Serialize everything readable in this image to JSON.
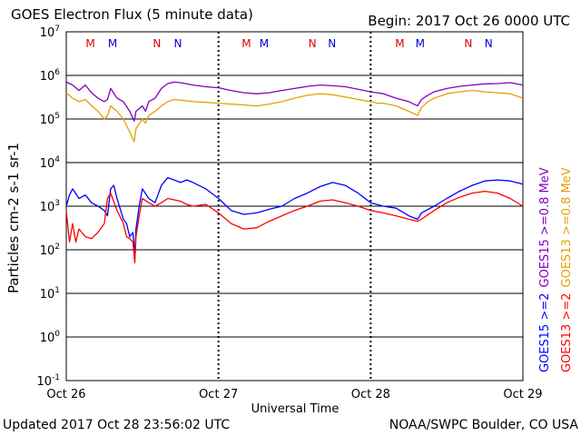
{
  "header": {
    "title": "GOES Electron Flux (5 minute data)",
    "begin": "Begin: 2017 Oct 26 0000 UTC"
  },
  "footer": {
    "updated": "Updated 2017 Oct 28 23:56:02 UTC",
    "credit": "NOAA/SWPC Boulder, CO USA"
  },
  "chart_data": {
    "type": "line",
    "title": "GOES Electron Flux (5 minute data)",
    "xlabel": "Universal Time",
    "ylabel": "Particles cm-2 s-1 sr-1",
    "yscale": "log",
    "ylim": [
      0.1,
      10000000
    ],
    "xlim": [
      0,
      72
    ],
    "x_unit": "hours since 2017 Oct 26 0000 UTC",
    "x_ticks": [
      {
        "x": 0,
        "label": "Oct 26"
      },
      {
        "x": 24,
        "label": "Oct 27"
      },
      {
        "x": 48,
        "label": "Oct 28"
      },
      {
        "x": 72,
        "label": "Oct 29"
      }
    ],
    "y_ticks": [
      {
        "value": 10000000,
        "base": "10",
        "exp": "7"
      },
      {
        "value": 1000000,
        "base": "10",
        "exp": "6"
      },
      {
        "value": 100000,
        "base": "10",
        "exp": "5"
      },
      {
        "value": 10000,
        "base": "10",
        "exp": "4"
      },
      {
        "value": 1000,
        "base": "10",
        "exp": "3"
      },
      {
        "value": 100,
        "base": "10",
        "exp": "2"
      },
      {
        "value": 10,
        "base": "10",
        "exp": "1"
      },
      {
        "value": 1,
        "base": "10",
        "exp": "0"
      },
      {
        "value": 0.1,
        "base": "10",
        "exp": "-1"
      }
    ],
    "threshold": {
      "value": 1000,
      "style": "dashed"
    },
    "grid": true,
    "legend": [
      {
        "text": "GOES15 >=2",
        "color": "#0000ff"
      },
      {
        "text": "GOES15 >=0.8 MeV",
        "color": "#8000c0"
      },
      {
        "text": "GOES13 >=2",
        "color": "#ff0000"
      },
      {
        "text": "GOES13 >=0.8 MeV",
        "color": "#e6a000"
      }
    ],
    "markers": [
      {
        "x": 3.8,
        "label": "M",
        "color": "#dd0000"
      },
      {
        "x": 7.3,
        "label": "M",
        "color": "#0000cc"
      },
      {
        "x": 14.3,
        "label": "N",
        "color": "#dd0000"
      },
      {
        "x": 17.6,
        "label": "N",
        "color": "#0000cc"
      },
      {
        "x": 28.4,
        "label": "M",
        "color": "#dd0000"
      },
      {
        "x": 31.2,
        "label": "M",
        "color": "#0000cc"
      },
      {
        "x": 38.8,
        "label": "N",
        "color": "#dd0000"
      },
      {
        "x": 41.9,
        "label": "N",
        "color": "#0000cc"
      },
      {
        "x": 52.6,
        "label": "M",
        "color": "#dd0000"
      },
      {
        "x": 55.8,
        "label": "M",
        "color": "#0000cc"
      },
      {
        "x": 63.4,
        "label": "N",
        "color": "#dd0000"
      },
      {
        "x": 66.6,
        "label": "N",
        "color": "#0000cc"
      }
    ],
    "series": [
      {
        "name": "GOES15 >=0.8 MeV",
        "color": "#8000c0",
        "x": [
          0,
          1,
          2,
          3,
          4,
          5,
          6,
          6.5,
          7,
          8,
          9,
          10,
          10.7,
          11,
          12,
          12.5,
          13,
          14,
          15,
          16,
          17,
          18,
          20,
          22,
          24,
          26,
          28,
          30,
          32,
          34,
          36,
          38,
          40,
          42,
          44,
          46,
          48,
          49,
          50,
          52,
          54,
          55.4,
          56,
          57,
          58,
          60,
          62,
          64,
          66,
          68,
          70,
          72
        ],
        "values": [
          700000,
          600000,
          450000,
          600000,
          400000,
          300000,
          250000,
          280000,
          500000,
          300000,
          250000,
          150000,
          90000,
          150000,
          200000,
          150000,
          250000,
          300000,
          500000,
          650000,
          700000,
          680000,
          600000,
          550000,
          520000,
          450000,
          400000,
          380000,
          400000,
          450000,
          500000,
          560000,
          600000,
          580000,
          550000,
          480000,
          420000,
          400000,
          380000,
          300000,
          250000,
          200000,
          280000,
          350000,
          420000,
          500000,
          560000,
          600000,
          640000,
          650000,
          680000,
          600000
        ]
      },
      {
        "name": "GOES13 >=0.8 MeV",
        "color": "#e6a000",
        "x": [
          0,
          1,
          2,
          3,
          4,
          5,
          6,
          6.5,
          7,
          8,
          9,
          10,
          10.7,
          11,
          12,
          12.5,
          13,
          14,
          15,
          16,
          17,
          18,
          20,
          22,
          24,
          26,
          28,
          30,
          32,
          34,
          36,
          38,
          40,
          42,
          44,
          46,
          48,
          49,
          50,
          52,
          54,
          55.4,
          56,
          57,
          58,
          60,
          62,
          64,
          66,
          68,
          70,
          72
        ],
        "values": [
          400000,
          300000,
          250000,
          280000,
          200000,
          150000,
          100000,
          120000,
          200000,
          150000,
          100000,
          50000,
          30000,
          60000,
          100000,
          80000,
          120000,
          150000,
          200000,
          250000,
          280000,
          270000,
          250000,
          240000,
          230000,
          220000,
          210000,
          200000,
          220000,
          250000,
          300000,
          350000,
          380000,
          360000,
          320000,
          280000,
          250000,
          230000,
          230000,
          200000,
          150000,
          120000,
          180000,
          250000,
          300000,
          380000,
          420000,
          450000,
          420000,
          400000,
          380000,
          300000
        ]
      },
      {
        "name": "GOES15 >=2",
        "color": "#0000ff",
        "x": [
          0,
          0.5,
          1,
          2,
          3,
          4,
          5,
          6,
          6.5,
          7,
          7.5,
          8,
          9,
          9.5,
          10,
          10.5,
          10.8,
          11,
          11.5,
          12,
          13,
          14,
          15,
          16,
          17,
          18,
          19,
          20,
          22,
          24,
          26,
          28,
          30,
          32,
          34,
          36,
          38,
          40,
          42,
          44,
          46,
          48,
          50,
          52,
          54,
          55.4,
          56,
          58,
          60,
          62,
          64,
          66,
          68,
          70,
          72
        ],
        "values": [
          1000,
          1800,
          2500,
          1500,
          1800,
          1200,
          1000,
          800,
          600,
          2500,
          3000,
          1500,
          500,
          400,
          200,
          250,
          80,
          300,
          1000,
          2500,
          1500,
          1200,
          3000,
          4500,
          4000,
          3500,
          4000,
          3500,
          2500,
          1500,
          800,
          650,
          700,
          850,
          1000,
          1500,
          2000,
          2800,
          3500,
          3000,
          2000,
          1200,
          1000,
          900,
          600,
          500,
          700,
          1000,
          1500,
          2200,
          3000,
          3800,
          4000,
          3800,
          3200
        ]
      },
      {
        "name": "GOES13 >=2",
        "color": "#ff0000",
        "x": [
          0,
          0.5,
          1,
          1.5,
          2,
          3,
          4,
          5,
          6,
          6.5,
          7,
          8,
          9,
          9.5,
          10,
          10.5,
          10.8,
          11,
          11.5,
          12,
          13,
          14,
          15,
          16,
          17,
          18,
          19,
          20,
          22,
          24,
          26,
          28,
          30,
          32,
          34,
          36,
          38,
          40,
          42,
          44,
          46,
          48,
          50,
          52,
          54,
          55.4,
          56,
          58,
          60,
          62,
          64,
          66,
          68,
          70,
          72
        ],
        "values": [
          800,
          150,
          400,
          150,
          300,
          200,
          180,
          250,
          400,
          1500,
          2000,
          800,
          400,
          200,
          180,
          150,
          50,
          200,
          600,
          1500,
          1200,
          1000,
          1200,
          1500,
          1400,
          1300,
          1100,
          1000,
          1100,
          700,
          400,
          300,
          320,
          450,
          600,
          800,
          1000,
          1300,
          1400,
          1200,
          1000,
          800,
          700,
          600,
          500,
          450,
          500,
          800,
          1200,
          1600,
          2000,
          2200,
          2000,
          1500,
          1000
        ]
      }
    ]
  }
}
